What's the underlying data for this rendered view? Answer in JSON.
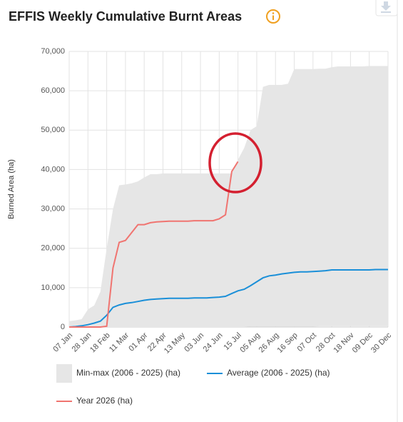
{
  "chart_data": {
    "type": "line",
    "title": "EFFIS Weekly Cumulative Burnt Areas",
    "y_label": "Burned Area (ha)",
    "categories": [
      "07 Jan",
      null,
      null,
      "28 Jan",
      null,
      null,
      "18 Feb",
      null,
      null,
      "11 Mar",
      null,
      null,
      "01 Apr",
      null,
      null,
      "22 Apr",
      null,
      null,
      "13 May",
      null,
      null,
      "03 Jun",
      null,
      null,
      "24 Jun",
      null,
      null,
      "15 Jul",
      null,
      null,
      "05 Aug",
      null,
      null,
      "26 Aug",
      null,
      null,
      "16 Sep",
      null,
      null,
      "07 Oct",
      null,
      null,
      "28 Oct",
      null,
      null,
      "18 Nov",
      null,
      null,
      "09 Dec",
      null,
      null,
      "30 Dec"
    ],
    "ylim": [
      0,
      70000
    ],
    "yticks": [
      {
        "value": 0,
        "label": "0"
      },
      {
        "value": 10000,
        "label": "10,000"
      },
      {
        "value": 20000,
        "label": "20,000"
      },
      {
        "value": 30000,
        "label": "30,000"
      },
      {
        "value": 40000,
        "label": "40,000"
      },
      {
        "value": 50000,
        "label": "50,000"
      },
      {
        "value": 60000,
        "label": "60,000"
      },
      {
        "value": 70000,
        "label": "70,000"
      }
    ],
    "grid": true,
    "series": [
      {
        "name": "Min-max (2006 - 2025) (ha)",
        "color": "#e6e6e6",
        "low": [
          0,
          0,
          0,
          0,
          0,
          0,
          0,
          0,
          0,
          0,
          0,
          0,
          0,
          0,
          0,
          0,
          0,
          0,
          0,
          0,
          0,
          0,
          0,
          0,
          0,
          0,
          0,
          0,
          0,
          100,
          100,
          100,
          100,
          100,
          100,
          100,
          100,
          100,
          100,
          100,
          200,
          200,
          200,
          200,
          200,
          200,
          200,
          200,
          200,
          200,
          200,
          200
        ],
        "high": [
          1500,
          1700,
          2000,
          4500,
          5500,
          9000,
          20000,
          30000,
          36000,
          36200,
          36500,
          37000,
          38000,
          38800,
          38800,
          39000,
          39000,
          39000,
          39000,
          39000,
          39000,
          39000,
          39000,
          39000,
          39000,
          39000,
          39000,
          42500,
          45500,
          50000,
          51000,
          61000,
          61500,
          61500,
          61500,
          61800,
          65500,
          65500,
          65500,
          65500,
          65600,
          65600,
          66000,
          66200,
          66200,
          66200,
          66200,
          66200,
          66300,
          66300,
          66300,
          66300
        ]
      },
      {
        "name": "Average (2006 - 2025) (ha)",
        "color": "#1a8fd8",
        "values": [
          0,
          100,
          300,
          600,
          1000,
          1500,
          3000,
          5000,
          5600,
          6000,
          6200,
          6500,
          6800,
          7000,
          7100,
          7200,
          7300,
          7300,
          7300,
          7300,
          7400,
          7400,
          7400,
          7500,
          7600,
          7800,
          8500,
          9200,
          9600,
          10500,
          11500,
          12500,
          13000,
          13200,
          13500,
          13700,
          13900,
          14000,
          14000,
          14100,
          14200,
          14300,
          14500,
          14500,
          14500,
          14500,
          14500,
          14500,
          14500,
          14600,
          14600,
          14600
        ]
      },
      {
        "name": "Year 2026 (ha)",
        "color": "#f07470",
        "values": [
          0,
          0,
          0,
          0,
          0,
          0,
          200,
          15000,
          21500,
          22000,
          24000,
          26000,
          26000,
          26500,
          26700,
          26800,
          26900,
          26900,
          26900,
          26900,
          27000,
          27000,
          27000,
          27000,
          27500,
          28500,
          39500,
          42000,
          null,
          null,
          null,
          null,
          null,
          null,
          null,
          null,
          null,
          null,
          null,
          null,
          null,
          null,
          null,
          null,
          null,
          null,
          null,
          null,
          null,
          null,
          null,
          null
        ]
      }
    ]
  }
}
